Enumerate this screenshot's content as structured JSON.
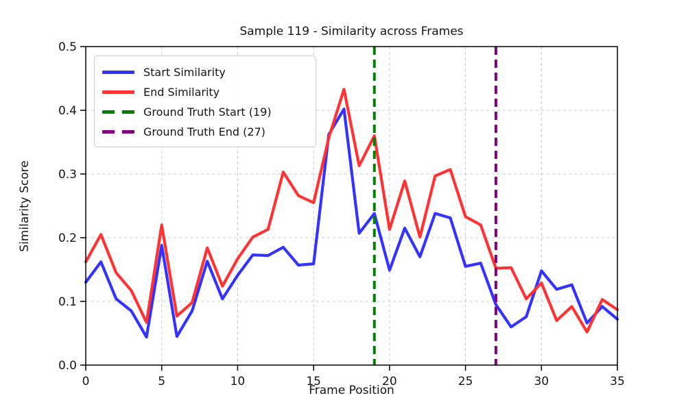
{
  "chart_data": {
    "type": "line",
    "title": "Sample 119 - Similarity across Frames",
    "xlabel": "Frame Position",
    "ylabel": "Similarity Score",
    "xlim": [
      0,
      35
    ],
    "ylim": [
      0.0,
      0.5
    ],
    "xticks": [
      0,
      5,
      10,
      15,
      20,
      25,
      30,
      35
    ],
    "yticks": [
      0.0,
      0.1,
      0.2,
      0.3,
      0.4,
      0.5
    ],
    "grid": true,
    "grid_color": "#c8c8c8",
    "legend_position": "upper-left",
    "x": [
      0,
      1,
      2,
      3,
      4,
      5,
      6,
      7,
      8,
      9,
      10,
      11,
      12,
      13,
      14,
      15,
      16,
      17,
      18,
      19,
      20,
      21,
      22,
      23,
      24,
      25,
      26,
      27,
      28,
      29,
      30,
      31,
      32,
      33,
      34,
      35
    ],
    "series": [
      {
        "name": "Start Similarity",
        "color": "#3333ff",
        "style": "solid",
        "values": [
          0.13,
          0.162,
          0.104,
          0.085,
          0.044,
          0.188,
          0.045,
          0.085,
          0.163,
          0.104,
          0.141,
          0.173,
          0.172,
          0.185,
          0.157,
          0.159,
          0.362,
          0.402,
          0.207,
          0.238,
          0.149,
          0.215,
          0.17,
          0.238,
          0.231,
          0.155,
          0.16,
          0.095,
          0.06,
          0.076,
          0.148,
          0.119,
          0.126,
          0.066,
          0.092,
          0.072
        ]
      },
      {
        "name": "End Similarity",
        "color": "#ff3333",
        "style": "solid",
        "values": [
          0.162,
          0.205,
          0.145,
          0.117,
          0.067,
          0.22,
          0.077,
          0.098,
          0.184,
          0.124,
          0.167,
          0.201,
          0.213,
          0.303,
          0.266,
          0.255,
          0.357,
          0.433,
          0.313,
          0.36,
          0.213,
          0.289,
          0.201,
          0.297,
          0.307,
          0.233,
          0.22,
          0.152,
          0.153,
          0.104,
          0.129,
          0.07,
          0.092,
          0.052,
          0.103,
          0.087
        ]
      }
    ],
    "vlines": [
      {
        "name": "Ground Truth Start (19)",
        "x": 19,
        "color": "#008000",
        "style": "dashed"
      },
      {
        "name": "Ground Truth End (27)",
        "x": 27,
        "color": "#800080",
        "style": "dashed"
      }
    ]
  }
}
